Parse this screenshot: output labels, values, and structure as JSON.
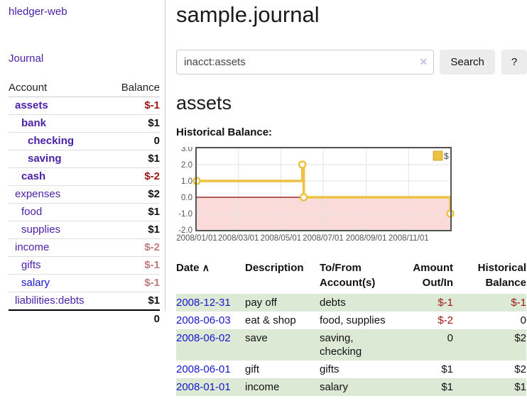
{
  "colors": {
    "accent_purple": "#4a1fa8",
    "link_blue": "#1717cc",
    "negative_strong": "#9e1515",
    "negative_soft": "#bf7a7a",
    "row_stripe_green": "#dbe9d5",
    "button_gray": "#ececec"
  },
  "sidebar": {
    "brand": "hledger-web",
    "journal_link": "Journal",
    "accounts": {
      "header_account": "Account",
      "header_balance": "Balance",
      "rows": [
        {
          "name": "assets",
          "balance": "$-1",
          "indent": 1,
          "bold": true
        },
        {
          "name": "bank",
          "balance": "$1",
          "indent": 2,
          "bold": true
        },
        {
          "name": "checking",
          "balance": "0",
          "indent": 3,
          "bold": true
        },
        {
          "name": "saving",
          "balance": "$1",
          "indent": 3,
          "bold": true
        },
        {
          "name": "cash",
          "balance": "$-2",
          "indent": 2,
          "bold": true
        },
        {
          "name": "expenses",
          "balance": "$2",
          "indent": 1,
          "bold": false
        },
        {
          "name": "food",
          "balance": "$1",
          "indent": 2,
          "bold": false
        },
        {
          "name": "supplies",
          "balance": "$1",
          "indent": 2,
          "bold": false
        },
        {
          "name": "income",
          "balance": "$-2",
          "indent": 1,
          "bold": false
        },
        {
          "name": "gifts",
          "balance": "$-1",
          "indent": 2,
          "bold": false
        },
        {
          "name": "salary",
          "balance": "$-1",
          "indent": 2,
          "bold": false,
          "link_style": "blue"
        },
        {
          "name": "liabilities:debts",
          "balance": "$1",
          "indent": 1,
          "bold": false
        }
      ],
      "total": "0"
    }
  },
  "main": {
    "title": "sample.journal",
    "search": {
      "value": "inacct:assets",
      "clear_icon": "✕",
      "search_button": "Search",
      "help_button": "?"
    },
    "account_heading": "assets",
    "chart_title": "Historical Balance:"
  },
  "chart_data": {
    "type": "line",
    "line_style": "step",
    "title": "Historical Balance:",
    "legend": {
      "label": "$",
      "position": "top-right"
    },
    "series": [
      {
        "name": "$",
        "color": "#edc240",
        "points": [
          [
            "2008-01-01",
            1.0
          ],
          [
            "2008-06-01",
            2.0
          ],
          [
            "2008-06-03",
            0.0
          ],
          [
            "2008-12-31",
            -1.0
          ]
        ]
      }
    ],
    "ylim": [
      -2.0,
      3.0
    ],
    "y_ticks": [
      3.0,
      2.0,
      1.0,
      0.0,
      -1.0,
      -2.0
    ],
    "x_range": [
      "2008-01-01",
      "2008-12-31"
    ],
    "x_ticks": [
      "2008/01/01",
      "2008/03/01",
      "2008/05/01",
      "2008/07/01",
      "2008/09/01",
      "2008/11/01"
    ],
    "grid": true,
    "negative_region_color": "#fbdada",
    "zero_line_color": "#8b0000",
    "border_color": "#545454"
  },
  "register": {
    "headers": [
      "Date",
      "Description",
      "To/From Account(s)",
      "Amount Out/In",
      "Historical Balance"
    ],
    "sort_icon": "∧",
    "rows": [
      {
        "date": "2008-12-31",
        "description": "pay off",
        "accounts": "debts",
        "amount": "$-1",
        "balance": "$-1"
      },
      {
        "date": "2008-06-03",
        "description": "eat & shop",
        "accounts": "food, supplies",
        "amount": "$-2",
        "balance": "0"
      },
      {
        "date": "2008-06-02",
        "description": "save",
        "accounts": "saving, checking",
        "amount": "0",
        "balance": "$2"
      },
      {
        "date": "2008-06-01",
        "description": "gift",
        "accounts": "gifts",
        "amount": "$1",
        "balance": "$2"
      },
      {
        "date": "2008-01-01",
        "description": "income",
        "accounts": "salary",
        "amount": "$1",
        "balance": "$1"
      }
    ]
  }
}
